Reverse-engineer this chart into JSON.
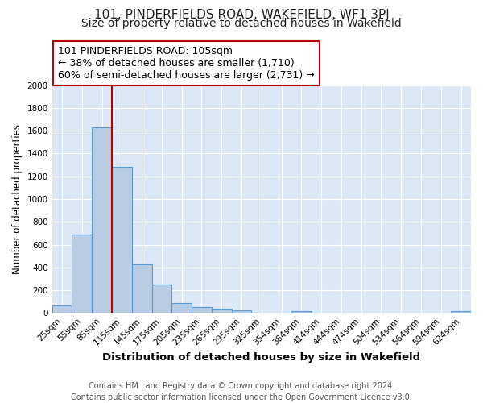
{
  "title": "101, PINDERFIELDS ROAD, WAKEFIELD, WF1 3PJ",
  "subtitle": "Size of property relative to detached houses in Wakefield",
  "xlabel": "Distribution of detached houses by size in Wakefield",
  "ylabel": "Number of detached properties",
  "bar_labels": [
    "25sqm",
    "55sqm",
    "85sqm",
    "115sqm",
    "145sqm",
    "175sqm",
    "205sqm",
    "235sqm",
    "265sqm",
    "295sqm",
    "325sqm",
    "354sqm",
    "384sqm",
    "414sqm",
    "444sqm",
    "474sqm",
    "504sqm",
    "534sqm",
    "564sqm",
    "594sqm",
    "624sqm"
  ],
  "bar_values": [
    65,
    690,
    1630,
    1280,
    430,
    250,
    85,
    55,
    35,
    25,
    5,
    0,
    15,
    0,
    0,
    0,
    0,
    0,
    0,
    0,
    15
  ],
  "bar_color": "#b8cce4",
  "bar_edge_color": "#5b9bd5",
  "vline_x_index": 2,
  "vline_color": "#c00000",
  "annotation_line1": "101 PINDERFIELDS ROAD: 105sqm",
  "annotation_line2": "← 38% of detached houses are smaller (1,710)",
  "annotation_line3": "60% of semi-detached houses are larger (2,731) →",
  "annotation_box_color": "#ffffff",
  "annotation_box_edge": "#c00000",
  "ylim": [
    0,
    2000
  ],
  "yticks": [
    0,
    200,
    400,
    600,
    800,
    1000,
    1200,
    1400,
    1600,
    1800,
    2000
  ],
  "plot_bg_color": "#dce8f5",
  "fig_bg_color": "#ffffff",
  "grid_color": "#ffffff",
  "footer_line1": "Contains HM Land Registry data © Crown copyright and database right 2024.",
  "footer_line2": "Contains public sector information licensed under the Open Government Licence v3.0.",
  "title_fontsize": 11,
  "subtitle_fontsize": 10,
  "xlabel_fontsize": 9.5,
  "ylabel_fontsize": 8.5,
  "tick_fontsize": 7.5,
  "annotation_fontsize": 9,
  "footer_fontsize": 7
}
